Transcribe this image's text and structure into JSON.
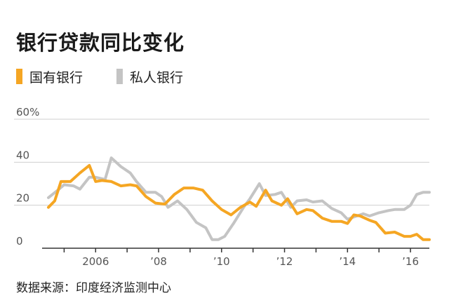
{
  "title": "银行贷款同比变化",
  "source": "数据来源：印度经济监测中心",
  "colors": {
    "state": "#f5a623",
    "private": "#c4c4c4",
    "axis": "#333333",
    "grid": "#cfcfcf"
  },
  "chart_data": {
    "type": "line",
    "title": "银行贷款同比变化",
    "legend_position": "top-left",
    "grid": true,
    "ylim": [
      0,
      60
    ],
    "xlim": [
      2004.3,
      2016.6
    ],
    "y_ticks": [
      {
        "value": 0,
        "label": "0"
      },
      {
        "value": 20,
        "label": "20"
      },
      {
        "value": 40,
        "label": "40"
      },
      {
        "value": 60,
        "label": "60%"
      }
    ],
    "x_ticks": [
      {
        "value": 2006,
        "label": "2006"
      },
      {
        "value": 2008,
        "label": "’08"
      },
      {
        "value": 2010,
        "label": "’10"
      },
      {
        "value": 2012,
        "label": "’12"
      },
      {
        "value": 2014,
        "label": "’14"
      },
      {
        "value": 2016,
        "label": "’16"
      }
    ],
    "series": [
      {
        "name": "国有银行",
        "color": "#f5a623",
        "points": [
          [
            2004.5,
            19
          ],
          [
            2004.7,
            22
          ],
          [
            2004.9,
            31
          ],
          [
            2005.2,
            31
          ],
          [
            2005.5,
            35
          ],
          [
            2005.8,
            38.5
          ],
          [
            2006.0,
            31
          ],
          [
            2006.2,
            31.5
          ],
          [
            2006.5,
            31
          ],
          [
            2006.8,
            29
          ],
          [
            2007.1,
            29.5
          ],
          [
            2007.3,
            29
          ],
          [
            2007.6,
            24
          ],
          [
            2007.9,
            21
          ],
          [
            2008.2,
            20.5
          ],
          [
            2008.5,
            25
          ],
          [
            2008.8,
            28
          ],
          [
            2009.1,
            28
          ],
          [
            2009.4,
            27
          ],
          [
            2009.7,
            22
          ],
          [
            2010.0,
            18
          ],
          [
            2010.3,
            15.5
          ],
          [
            2010.6,
            19
          ],
          [
            2010.9,
            21.5
          ],
          [
            2011.1,
            19.5
          ],
          [
            2011.4,
            27
          ],
          [
            2011.6,
            22
          ],
          [
            2011.9,
            20
          ],
          [
            2012.1,
            23
          ],
          [
            2012.4,
            16
          ],
          [
            2012.7,
            18
          ],
          [
            2012.9,
            17.5
          ],
          [
            2013.2,
            14
          ],
          [
            2013.5,
            12.5
          ],
          [
            2013.8,
            12.5
          ],
          [
            2014.0,
            11.5
          ],
          [
            2014.2,
            15.5
          ],
          [
            2014.4,
            15
          ],
          [
            2014.7,
            13
          ],
          [
            2014.9,
            12
          ],
          [
            2015.2,
            7
          ],
          [
            2015.5,
            7.5
          ],
          [
            2015.8,
            5.5
          ],
          [
            2016.0,
            5.5
          ],
          [
            2016.2,
            6.5
          ],
          [
            2016.4,
            4
          ],
          [
            2016.6,
            4
          ]
        ]
      },
      {
        "name": "私人银行",
        "color": "#c4c4c4",
        "points": [
          [
            2004.5,
            23.5
          ],
          [
            2004.8,
            27
          ],
          [
            2005.0,
            29.5
          ],
          [
            2005.3,
            29
          ],
          [
            2005.5,
            27.5
          ],
          [
            2005.8,
            33
          ],
          [
            2006.0,
            33
          ],
          [
            2006.3,
            32
          ],
          [
            2006.5,
            42
          ],
          [
            2006.8,
            38
          ],
          [
            2007.1,
            35
          ],
          [
            2007.3,
            31
          ],
          [
            2007.6,
            26
          ],
          [
            2007.9,
            26
          ],
          [
            2008.1,
            24
          ],
          [
            2008.3,
            19
          ],
          [
            2008.6,
            22
          ],
          [
            2008.9,
            18
          ],
          [
            2009.2,
            12
          ],
          [
            2009.5,
            9.5
          ],
          [
            2009.7,
            4
          ],
          [
            2009.9,
            4
          ],
          [
            2010.1,
            5.5
          ],
          [
            2010.4,
            12
          ],
          [
            2010.7,
            19
          ],
          [
            2010.9,
            23
          ],
          [
            2011.2,
            30
          ],
          [
            2011.4,
            24.5
          ],
          [
            2011.7,
            25
          ],
          [
            2011.9,
            26
          ],
          [
            2012.2,
            19
          ],
          [
            2012.4,
            22
          ],
          [
            2012.7,
            22.5
          ],
          [
            2012.9,
            21.5
          ],
          [
            2013.2,
            22
          ],
          [
            2013.5,
            18.5
          ],
          [
            2013.8,
            16.5
          ],
          [
            2014.0,
            13.5
          ],
          [
            2014.2,
            14.5
          ],
          [
            2014.5,
            16
          ],
          [
            2014.7,
            15
          ],
          [
            2015.0,
            16.5
          ],
          [
            2015.3,
            17.5
          ],
          [
            2015.5,
            18
          ],
          [
            2015.8,
            18
          ],
          [
            2016.0,
            20
          ],
          [
            2016.2,
            25
          ],
          [
            2016.4,
            26
          ],
          [
            2016.6,
            26
          ]
        ]
      }
    ]
  }
}
